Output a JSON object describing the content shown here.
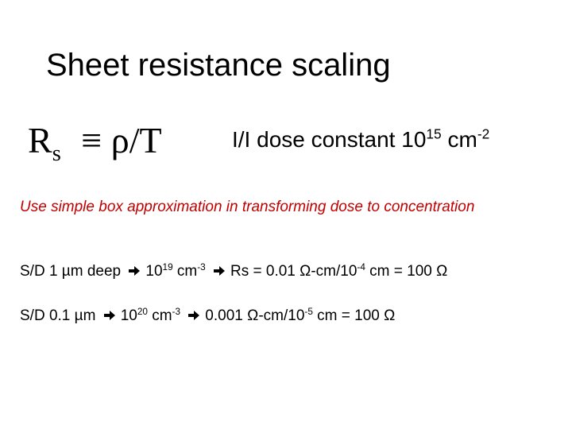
{
  "title": "Sheet resistance scaling",
  "formula": {
    "symbol": "R",
    "subscript": "s",
    "rest": "≡ ρ/T"
  },
  "dose": {
    "text": "I/I dose constant 10",
    "exp": "15",
    "unit": "cm",
    "unit_exp": "-2"
  },
  "note": "Use simple box approximation in transforming dose to concentration",
  "examples": [
    {
      "label": "S/D 1 µm deep",
      "conc": "10",
      "conc_exp": "19",
      "conc_unit": "cm",
      "conc_unit_exp": "-3",
      "calc": "Rs = 0.01 Ω-cm/10",
      "calc_exp": "-4",
      "result": "cm = 100 Ω"
    },
    {
      "label": "S/D 0.1 µm",
      "conc": "10",
      "conc_exp": "20",
      "conc_unit": "cm",
      "conc_unit_exp": "-3",
      "calc": "0.001 Ω-cm/10",
      "calc_exp": "-5",
      "result": "cm = 100 Ω"
    }
  ]
}
